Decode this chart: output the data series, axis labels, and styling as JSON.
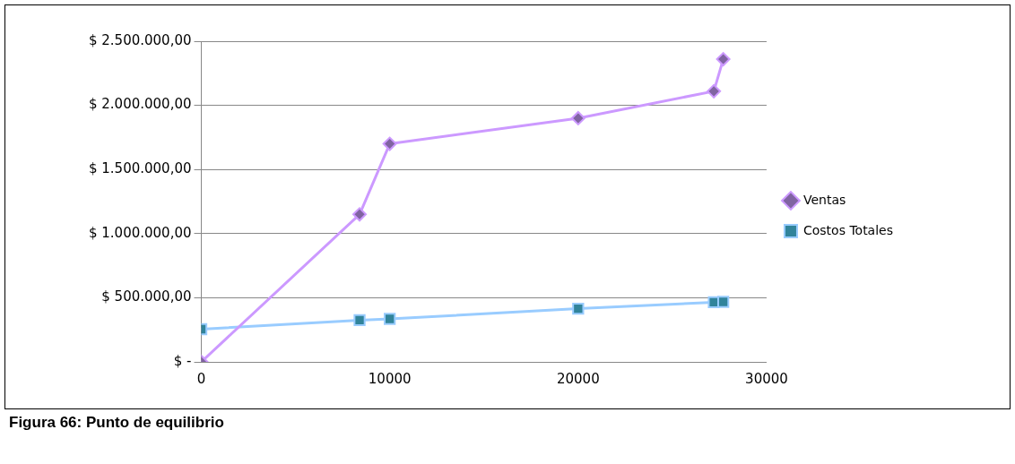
{
  "chart_data": {
    "type": "line",
    "annotations": [
      "Figura 66: Punto de equilibrio"
    ],
    "xlim": [
      0,
      30000
    ],
    "xticks": [
      0,
      10000,
      20000,
      30000
    ],
    "ylim": [
      0,
      2500000
    ],
    "yticks": [
      {
        "value": 0,
        "label": "$ -"
      },
      {
        "value": 500000,
        "label": "$ 500.000,00"
      },
      {
        "value": 1000000,
        "label": "$ 1.000.000,00"
      },
      {
        "value": 1500000,
        "label": "$ 1.500.000,00"
      },
      {
        "value": 2000000,
        "label": "$ 2.000.000,00"
      },
      {
        "value": 2500000,
        "label": "$ 2.500.000,00"
      }
    ],
    "grid": "y",
    "legend": "right",
    "series": [
      {
        "name": "Ventas",
        "color": "#cc99ff",
        "marker": "diamond",
        "x": [
          0,
          8400,
          10000,
          20000,
          27200,
          27700
        ],
        "values": [
          0,
          1150000,
          1700000,
          1900000,
          2110000,
          2360000
        ]
      },
      {
        "name": "Costos Totales",
        "color": "#99ccff",
        "marker": "square",
        "x": [
          0,
          8400,
          10000,
          20000,
          27200,
          27700
        ],
        "values": [
          255000,
          325000,
          335000,
          415000,
          465000,
          468000
        ]
      }
    ]
  }
}
